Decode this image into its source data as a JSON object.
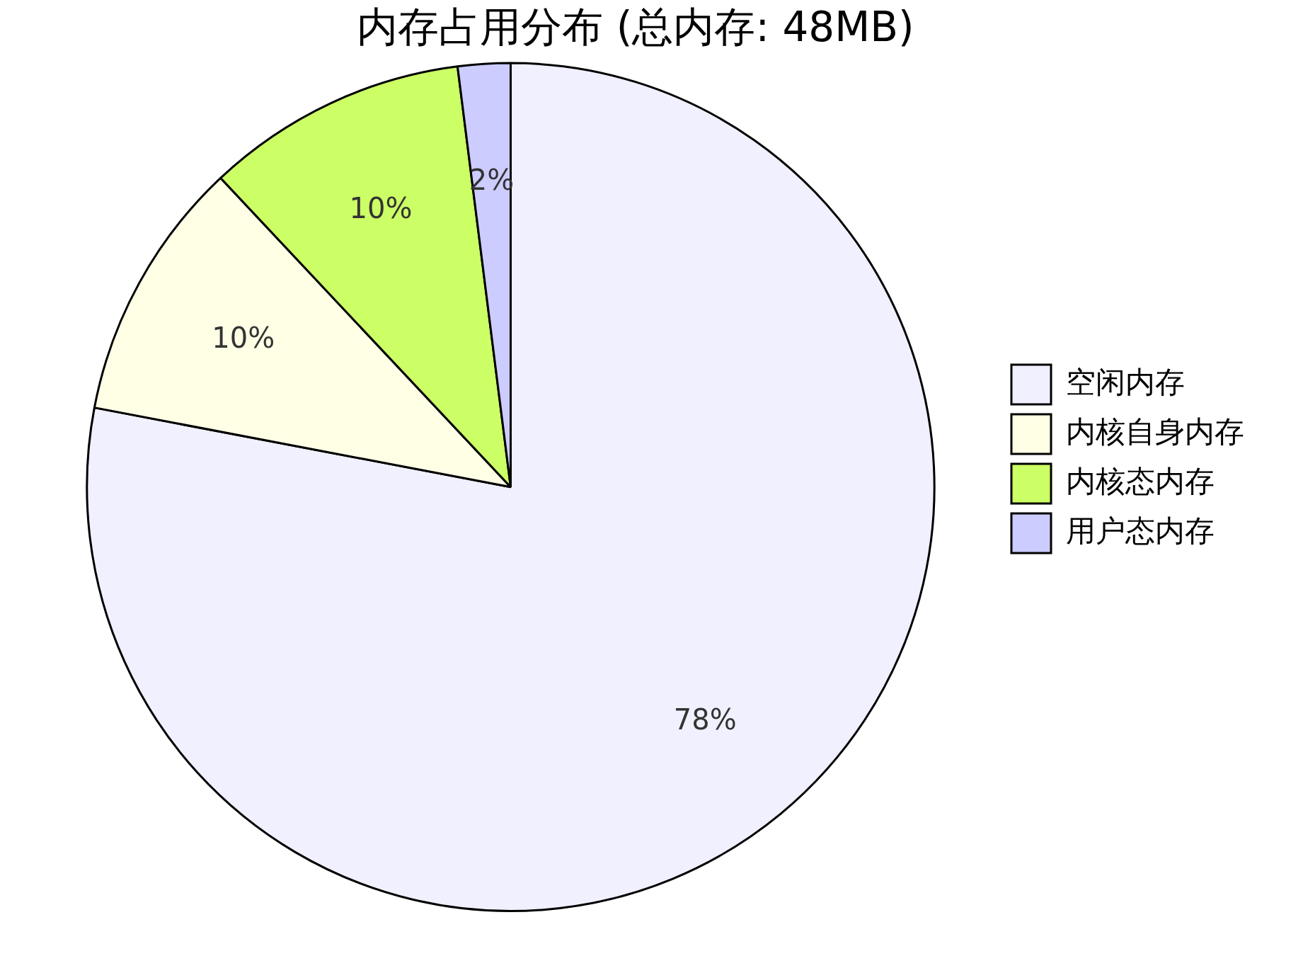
{
  "chart_data": {
    "type": "pie",
    "title": "内存占用分布 (总内存: 48MB)",
    "categories": [
      "空闲内存",
      "内核自身内存",
      "内核态内存",
      "用户态内存"
    ],
    "values": [
      78,
      10,
      10,
      2
    ],
    "colors": [
      "#f0f0fe",
      "#ffffe6",
      "#ccff66",
      "#ccccff"
    ],
    "value_labels": [
      "78%",
      "10%",
      "10%",
      "2%"
    ],
    "legend": "right"
  }
}
